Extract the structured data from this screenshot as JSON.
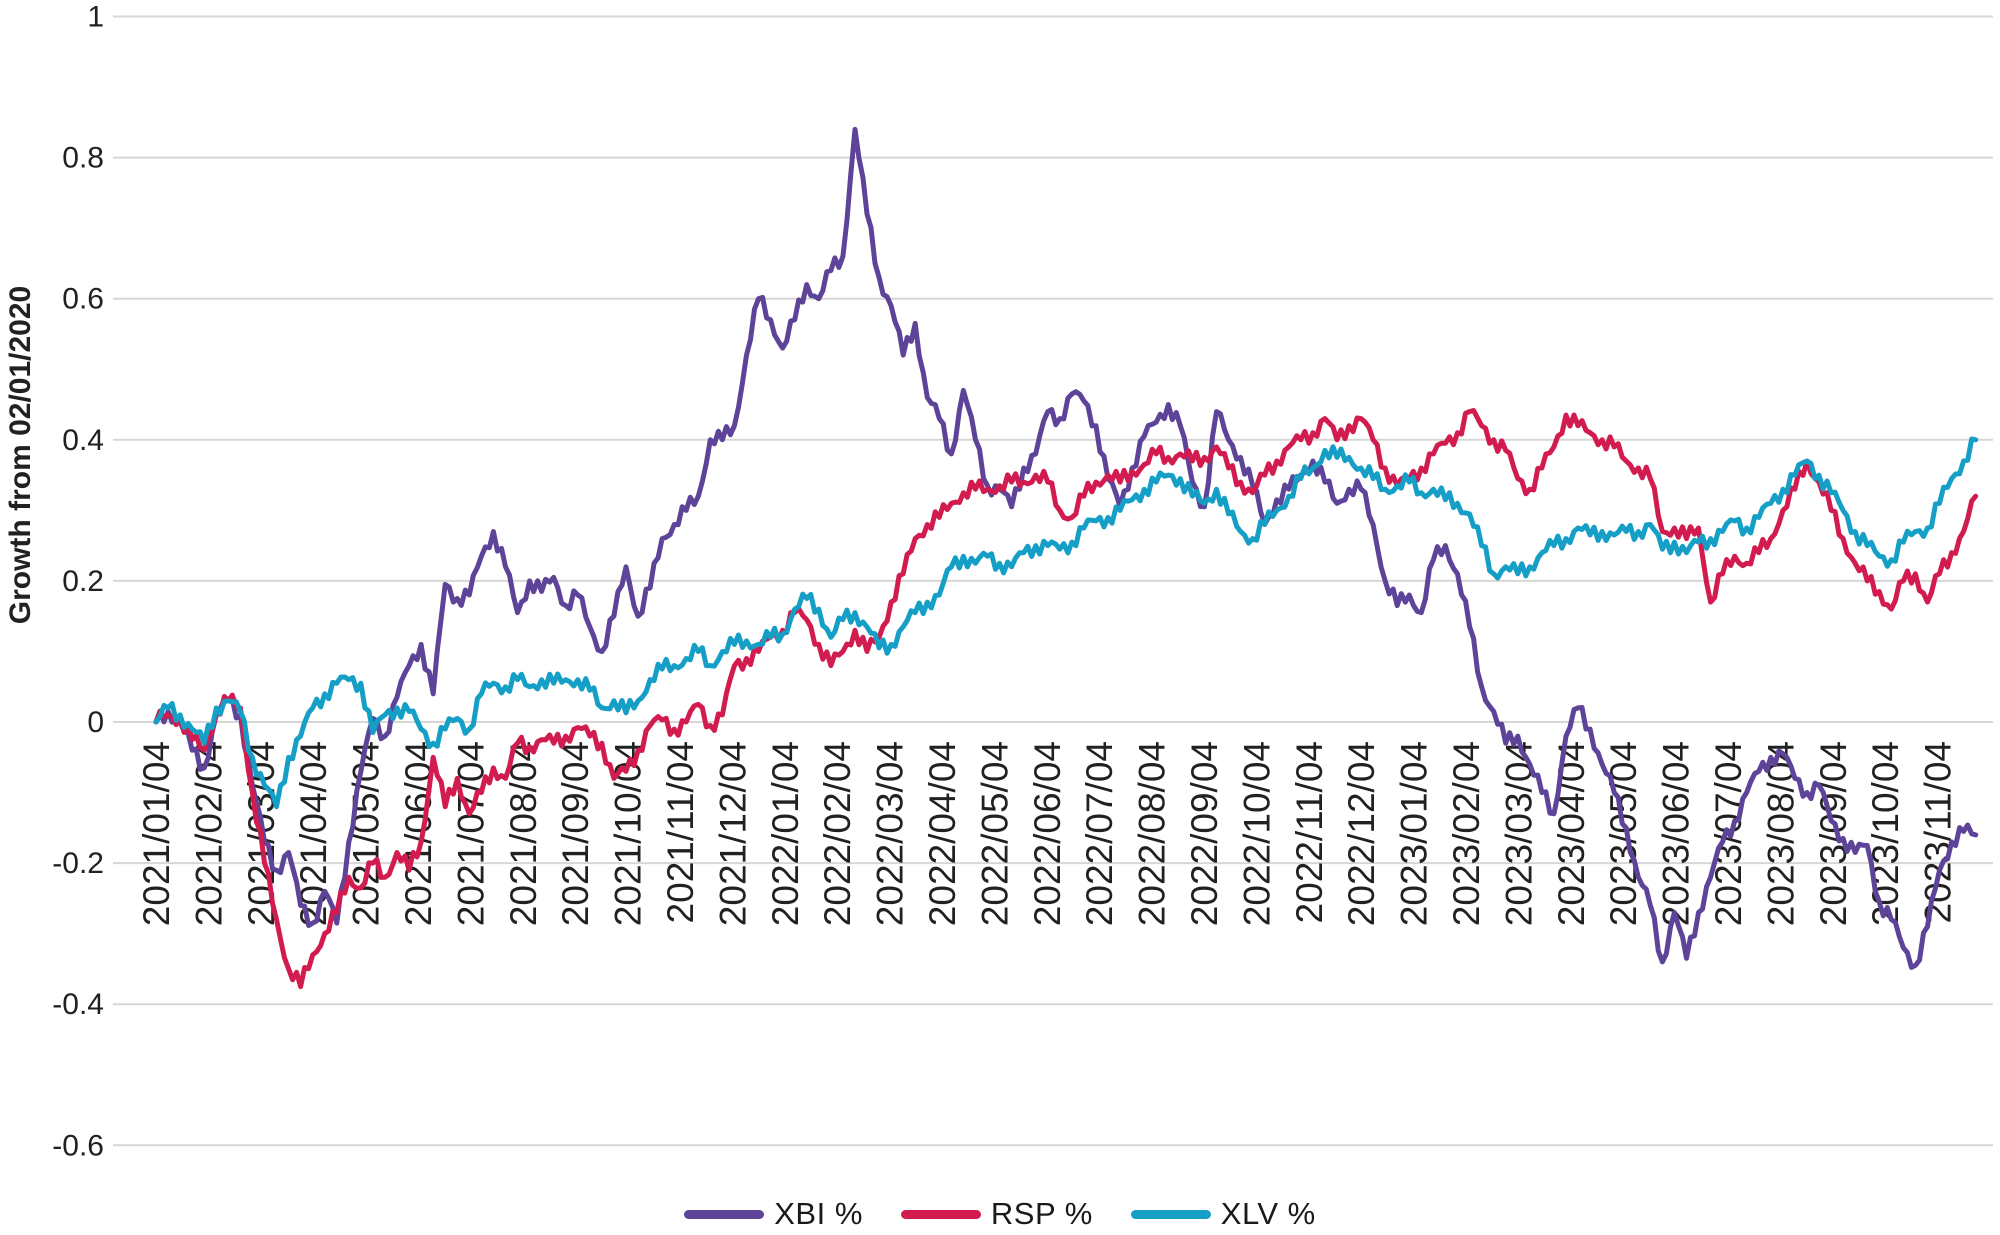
{
  "chart_data": {
    "type": "line",
    "title": "",
    "xlabel": "",
    "ylabel": "Growth from 02/01/2020",
    "ylim": [
      -0.6,
      1
    ],
    "grid": "horizontal",
    "legend_position": "bottom-center",
    "y_tick_labels": [
      "1",
      "0.8",
      "0.6",
      "0.4",
      "0.2",
      "0",
      "-0.2",
      "-0.4",
      "-0.6"
    ],
    "y_tick_values": [
      1,
      0.8,
      0.6,
      0.4,
      0.2,
      0,
      -0.2,
      -0.4,
      -0.6
    ],
    "x_tick_labels": [
      "2021/01/04",
      "2021/02/04",
      "2021/03/04",
      "2021/04/04",
      "2021/05/04",
      "2021/06/04",
      "2021/07/04",
      "2021/08/04",
      "2021/09/04",
      "2021/10/04",
      "2021/11/04",
      "2021/12/04",
      "2022/01/04",
      "2022/02/04",
      "2022/03/04",
      "2022/04/04",
      "2022/05/04",
      "2022/06/04",
      "2022/07/04",
      "2022/08/04",
      "2022/09/04",
      "2022/10/04",
      "2022/11/04",
      "2022/12/04",
      "2023/01/04",
      "2023/02/04",
      "2023/03/04",
      "2023/04/04",
      "2023/05/04",
      "2023/06/04",
      "2023/07/04",
      "2023/08/04",
      "2023/09/04",
      "2023/10/04",
      "2023/11/04"
    ],
    "x_sampling": "weekly (7-day) samples starting 2021/01/04",
    "series": [
      {
        "name": "XBI %",
        "color": "#5e4498",
        "values": [
          0,
          0.015,
          0,
          -0.04,
          -0.065,
          0.01,
          0.03,
          0.01,
          -0.09,
          -0.17,
          -0.21,
          -0.185,
          -0.26,
          -0.285,
          -0.24,
          -0.285,
          -0.17,
          -0.07,
          0.005,
          -0.02,
          0.035,
          0.08,
          0.11,
          0.04,
          0.195,
          0.175,
          0.18,
          0.235,
          0.27,
          0.22,
          0.155,
          0.2,
          0.185,
          0.205,
          0.165,
          0.18,
          0.135,
          0.1,
          0.15,
          0.22,
          0.15,
          0.19,
          0.26,
          0.28,
          0.3,
          0.32,
          0.4,
          0.4,
          0.42,
          0.52,
          0.6,
          0.57,
          0.53,
          0.57,
          0.62,
          0.6,
          0.64,
          0.66,
          0.84,
          0.72,
          0.63,
          0.59,
          0.52,
          0.565,
          0.46,
          0.43,
          0.38,
          0.47,
          0.4,
          0.335,
          0.33,
          0.305,
          0.36,
          0.38,
          0.44,
          0.43,
          0.465,
          0.455,
          0.42,
          0.345,
          0.305,
          0.36,
          0.405,
          0.425,
          0.45,
          0.42,
          0.34,
          0.305,
          0.44,
          0.4,
          0.375,
          0.335,
          0.28,
          0.315,
          0.33,
          0.35,
          0.37,
          0.34,
          0.31,
          0.33,
          0.33,
          0.28,
          0.2,
          0.165,
          0.18,
          0.155,
          0.23,
          0.25,
          0.21,
          0.135,
          0.05,
          0.015,
          -0.03,
          -0.02,
          -0.06,
          -0.1,
          -0.13,
          -0.02,
          0.02,
          -0.01,
          -0.06,
          -0.1,
          -0.15,
          -0.22,
          -0.26,
          -0.34,
          -0.27,
          -0.335,
          -0.27,
          -0.22,
          -0.17,
          -0.14,
          -0.1,
          -0.07,
          -0.05,
          -0.045,
          -0.08,
          -0.1,
          -0.09,
          -0.14,
          -0.165,
          -0.185,
          -0.175,
          -0.255,
          -0.28,
          -0.32,
          -0.345,
          -0.29,
          -0.21,
          -0.17,
          -0.155,
          -0.16
        ]
      },
      {
        "name": "RSP %",
        "color": "#d21c4f",
        "values": [
          0,
          0.01,
          0.005,
          -0.025,
          -0.04,
          0.015,
          0.03,
          0.02,
          -0.1,
          -0.2,
          -0.28,
          -0.35,
          -0.375,
          -0.33,
          -0.3,
          -0.27,
          -0.22,
          -0.235,
          -0.2,
          -0.22,
          -0.185,
          -0.21,
          -0.17,
          -0.05,
          -0.12,
          -0.08,
          -0.13,
          -0.1,
          -0.065,
          -0.08,
          -0.03,
          -0.035,
          -0.025,
          -0.03,
          -0.02,
          -0.008,
          -0.02,
          -0.03,
          -0.08,
          -0.07,
          -0.04,
          -0.005,
          0.003,
          -0.01,
          0,
          0.025,
          -0.005,
          0.01,
          0.08,
          0.09,
          0.1,
          0.12,
          0.13,
          0.155,
          0.145,
          0.11,
          0.08,
          0.1,
          0.13,
          0.1,
          0.12,
          0.17,
          0.21,
          0.26,
          0.28,
          0.29,
          0.31,
          0.325,
          0.33,
          0.33,
          0.335,
          0.34,
          0.34,
          0.35,
          0.34,
          0.3,
          0.29,
          0.32,
          0.34,
          0.35,
          0.34,
          0.355,
          0.365,
          0.38,
          0.375,
          0.38,
          0.37,
          0.375,
          0.39,
          0.36,
          0.34,
          0.325,
          0.35,
          0.37,
          0.39,
          0.4,
          0.41,
          0.43,
          0.4,
          0.42,
          0.43,
          0.4,
          0.36,
          0.335,
          0.345,
          0.36,
          0.38,
          0.395,
          0.41,
          0.44,
          0.42,
          0.4,
          0.385,
          0.345,
          0.33,
          0.36,
          0.39,
          0.435,
          0.42,
          0.41,
          0.4,
          0.39,
          0.37,
          0.36,
          0.345,
          0.27,
          0.275,
          0.26,
          0.275,
          0.17,
          0.21,
          0.235,
          0.225,
          0.24,
          0.26,
          0.3,
          0.33,
          0.37,
          0.34,
          0.3,
          0.26,
          0.225,
          0.2,
          0.185,
          0.16,
          0.2,
          0.21,
          0.17,
          0.21,
          0.24,
          0.27,
          0.32
        ]
      },
      {
        "name": "XLV %",
        "color": "#169fc6",
        "values": [
          0,
          0.02,
          0.01,
          -0.01,
          -0.03,
          0.02,
          0.03,
          0.015,
          -0.05,
          -0.09,
          -0.12,
          -0.05,
          -0.02,
          0.02,
          0.04,
          0.055,
          0.06,
          0.055,
          -0.015,
          0.01,
          0.02,
          0.015,
          -0.01,
          -0.03,
          -0.01,
          0.005,
          -0.01,
          0.04,
          0.055,
          0.05,
          0.06,
          0.05,
          0.06,
          0.055,
          0.06,
          0.06,
          0.045,
          0.02,
          0.03,
          0.013,
          0.03,
          0.06,
          0.075,
          0.08,
          0.09,
          0.1,
          0.08,
          0.1,
          0.11,
          0.115,
          0.11,
          0.12,
          0.125,
          0.16,
          0.175,
          0.16,
          0.12,
          0.145,
          0.155,
          0.135,
          0.105,
          0.11,
          0.135,
          0.155,
          0.17,
          0.18,
          0.22,
          0.235,
          0.225,
          0.235,
          0.225,
          0.22,
          0.24,
          0.25,
          0.25,
          0.245,
          0.255,
          0.275,
          0.285,
          0.29,
          0.3,
          0.315,
          0.33,
          0.34,
          0.35,
          0.345,
          0.32,
          0.31,
          0.33,
          0.295,
          0.27,
          0.26,
          0.28,
          0.3,
          0.32,
          0.345,
          0.36,
          0.385,
          0.375,
          0.375,
          0.36,
          0.345,
          0.33,
          0.335,
          0.34,
          0.325,
          0.33,
          0.315,
          0.31,
          0.295,
          0.25,
          0.21,
          0.22,
          0.21,
          0.22,
          0.24,
          0.25,
          0.26,
          0.275,
          0.265,
          0.27,
          0.265,
          0.27,
          0.27,
          0.28,
          0.245,
          0.255,
          0.24,
          0.255,
          0.26,
          0.27,
          0.285,
          0.275,
          0.29,
          0.31,
          0.33,
          0.35,
          0.37,
          0.35,
          0.325,
          0.3,
          0.27,
          0.25,
          0.235,
          0.23,
          0.255,
          0.27,
          0.275,
          0.31,
          0.345,
          0.37,
          0.4
        ]
      }
    ],
    "style": {
      "gridline_color": "#d7d7d7",
      "text_color": "#212121",
      "line_width": 5
    }
  }
}
